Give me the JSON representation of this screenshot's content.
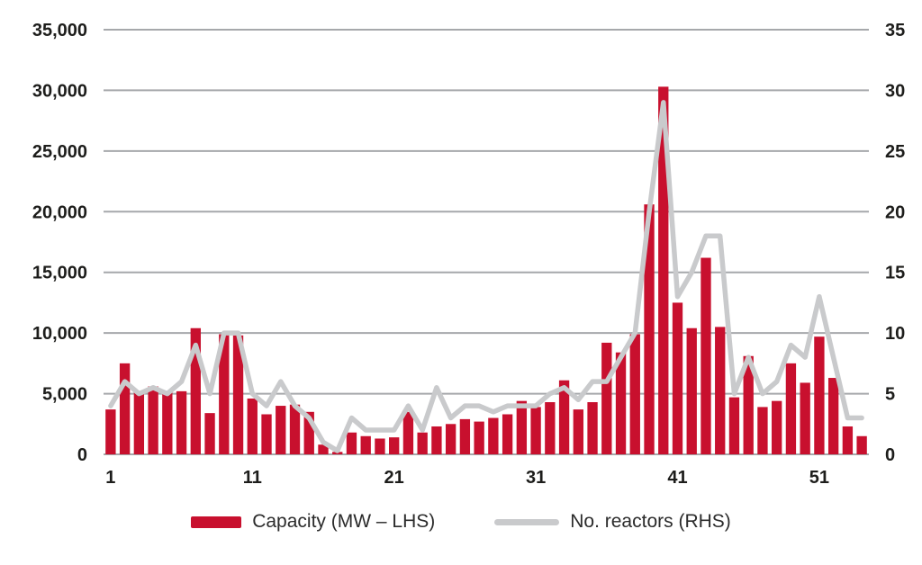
{
  "chart_data": {
    "type": "bar",
    "subtype": "combo-bar-line",
    "x": [
      1,
      2,
      3,
      4,
      5,
      6,
      7,
      8,
      9,
      10,
      11,
      12,
      13,
      14,
      15,
      16,
      17,
      18,
      19,
      20,
      21,
      22,
      23,
      24,
      25,
      26,
      27,
      28,
      29,
      30,
      31,
      32,
      33,
      34,
      35,
      36,
      37,
      38,
      39,
      40,
      41,
      42,
      43,
      44,
      45,
      46,
      47,
      48,
      49,
      50,
      51,
      52,
      53,
      54
    ],
    "series": [
      {
        "name": "Capacity (MW – LHS)",
        "type": "bar",
        "axis": "left",
        "color": "#c8102e",
        "values": [
          3700,
          7500,
          5200,
          5600,
          5100,
          5200,
          10400,
          3400,
          9900,
          9800,
          4600,
          3300,
          4000,
          4100,
          3500,
          800,
          200,
          1800,
          1500,
          1300,
          1400,
          3500,
          1800,
          2300,
          2500,
          2900,
          2700,
          3000,
          3300,
          4400,
          3900,
          4300,
          6100,
          3700,
          4300,
          9200,
          8400,
          9900,
          20600,
          30300,
          12500,
          10400,
          16200,
          10500,
          4700,
          8100,
          3900,
          4400,
          7500,
          5900,
          9700,
          6300,
          2300,
          1500
        ]
      },
      {
        "name": "No. reactors (RHS)",
        "type": "line",
        "axis": "right",
        "color": "#c9cacc",
        "values": [
          4,
          6,
          5,
          5.5,
          5,
          6,
          9,
          5,
          10,
          10,
          5,
          4,
          6,
          4,
          3,
          1,
          0.3,
          3,
          2,
          2,
          2,
          4,
          2,
          5.5,
          3,
          4,
          4,
          3.5,
          4,
          4,
          4,
          5,
          5.5,
          4.5,
          6,
          6,
          8,
          10,
          20,
          29,
          13,
          15,
          18,
          18,
          5,
          8,
          5,
          6,
          9,
          8,
          13,
          8,
          3,
          3
        ]
      }
    ],
    "left_axis": {
      "min": 0,
      "max": 35000,
      "step": 5000,
      "tick_labels": [
        "0",
        "5,000",
        "10,000",
        "15,000",
        "20,000",
        "25,000",
        "30,000",
        "35,000"
      ]
    },
    "right_axis": {
      "min": 0,
      "max": 35,
      "step": 5,
      "tick_labels": [
        "0",
        "5",
        "10",
        "15",
        "20",
        "25",
        "30",
        "35"
      ]
    },
    "x_axis": {
      "tick_values": [
        1,
        11,
        21,
        31,
        41,
        51
      ],
      "tick_labels": [
        "1",
        "11",
        "21",
        "31",
        "41",
        "51"
      ]
    },
    "grid": true,
    "legend_position": "bottom",
    "title": "",
    "xlabel": "",
    "ylabel_left": "Capacity (MW)",
    "ylabel_right": "No. reactors"
  },
  "legend": {
    "capacity_label": "Capacity (MW – LHS)",
    "reactors_label": "No. reactors (RHS)"
  },
  "colors": {
    "bar": "#c8102e",
    "line": "#c9cacc",
    "grid": "#a6a8ab",
    "text": "#1d1d1b"
  }
}
